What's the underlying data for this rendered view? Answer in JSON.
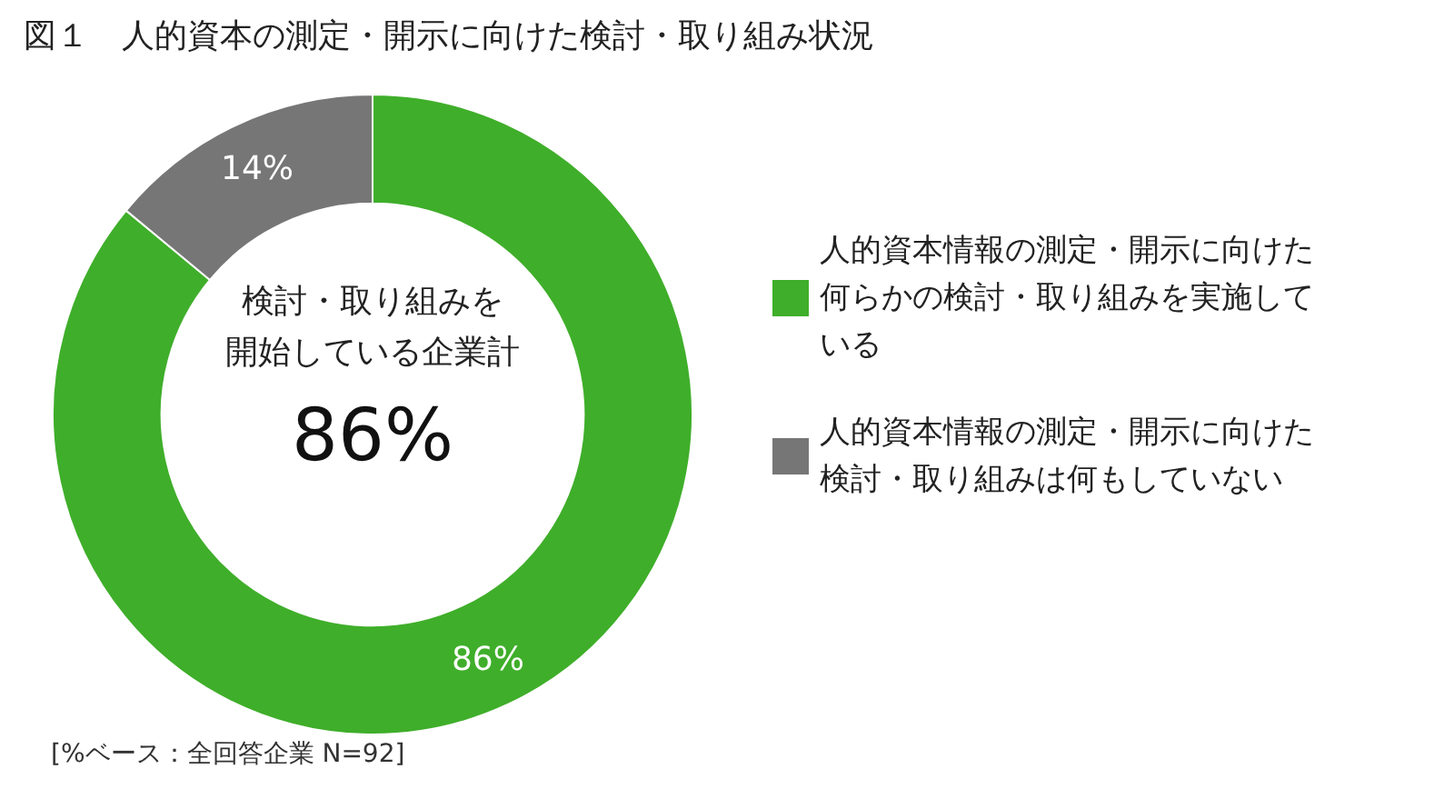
{
  "chart_data": {
    "type": "donut",
    "title": "図１　人的資本の測定・開示に向けた検討・取り組み状況",
    "categories": [
      "人的資本情報の測定・開示に向けた何らかの検討・取り組みを実施している",
      "人的資本情報の測定・開示に向けた検討・取り組みは何もしていない"
    ],
    "values": [
      86,
      14
    ],
    "colors": [
      "#3fae2a",
      "#767676"
    ],
    "value_labels": [
      "86%",
      "14%"
    ],
    "legend": "right",
    "annotations": [
      "検討・取り組みを",
      "開始している企業計",
      "86%",
      "[%ベース：全回答企業 N=92]"
    ]
  }
}
